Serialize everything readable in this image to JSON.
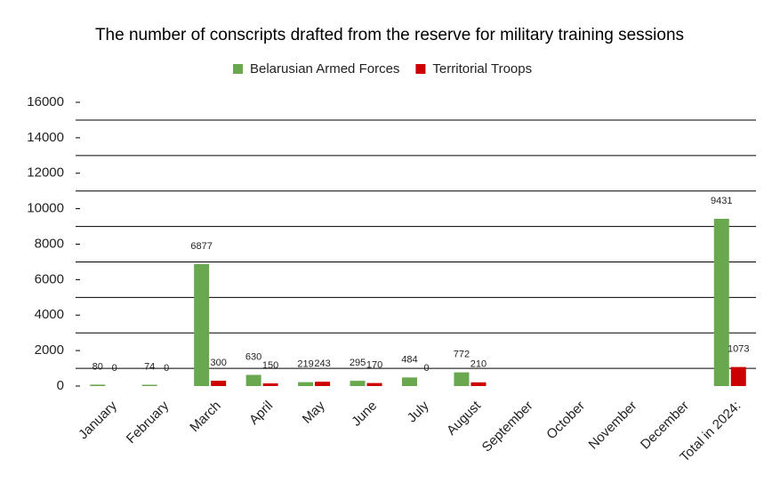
{
  "chart_data": {
    "type": "bar",
    "title": "The number of conscripts drafted from the reserve for military training sessions",
    "categories": [
      "January",
      "February",
      "March",
      "April",
      "May",
      "June",
      "July",
      "August",
      "September",
      "October",
      "November",
      "December",
      "Total in 2024:"
    ],
    "series": [
      {
        "name": "Belarusian Armed Forces",
        "color": "#6aa84f",
        "values": [
          80,
          74,
          6877,
          630,
          219,
          295,
          484,
          772,
          null,
          null,
          null,
          null,
          9431
        ]
      },
      {
        "name": "Territorial Troops",
        "color": "#cc0000",
        "values": [
          0,
          0,
          300,
          150,
          243,
          170,
          0,
          210,
          null,
          null,
          null,
          null,
          1073
        ]
      }
    ],
    "ylim": [
      0,
      16000
    ],
    "yticks": [
      0,
      2000,
      4000,
      6000,
      8000,
      10000,
      12000,
      14000,
      16000
    ],
    "grid": true,
    "legend": "top"
  }
}
